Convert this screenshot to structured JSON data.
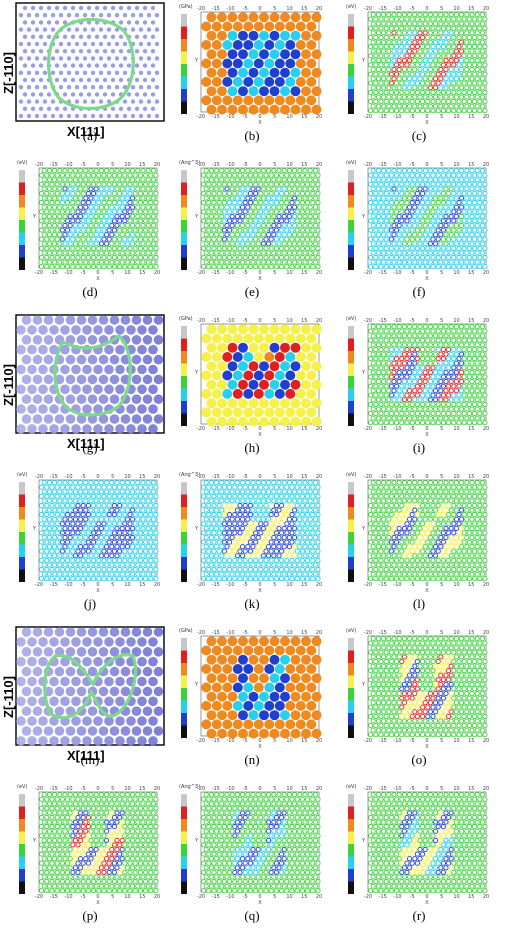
{
  "figure": {
    "panels": [
      {
        "id": "a",
        "caption": "(a)",
        "kind": "lattice",
        "xlabel": "X[111]",
        "ylabel": "Z[-110]"
      },
      {
        "id": "b",
        "caption": "(b)",
        "kind": "map",
        "unit": "(GPa)"
      },
      {
        "id": "c",
        "caption": "(c)",
        "kind": "map",
        "unit": "(eV)"
      },
      {
        "id": "d",
        "caption": "(d)",
        "kind": "map",
        "unit": "(eV)"
      },
      {
        "id": "e",
        "caption": "(e)",
        "kind": "map",
        "unit": "(Ang^3)"
      },
      {
        "id": "f",
        "caption": "(f)",
        "kind": "map",
        "unit": "(eV)"
      },
      {
        "id": "g",
        "caption": "(g)",
        "kind": "lattice",
        "xlabel": "X[111]",
        "ylabel": "Z[-110]"
      },
      {
        "id": "h",
        "caption": "(h)",
        "kind": "map",
        "unit": "(GPa)"
      },
      {
        "id": "i",
        "caption": "(i)",
        "kind": "map",
        "unit": "(eV)"
      },
      {
        "id": "j",
        "caption": "(j)",
        "kind": "map",
        "unit": "(eV)"
      },
      {
        "id": "k",
        "caption": "(k)",
        "kind": "map",
        "unit": "(Ang^3)"
      },
      {
        "id": "l",
        "caption": "(l)",
        "kind": "map",
        "unit": "(eV)"
      },
      {
        "id": "m",
        "caption": "(m)",
        "kind": "lattice",
        "xlabel": "X[111]",
        "ylabel": "Z[-110]"
      },
      {
        "id": "n",
        "caption": "(n)",
        "kind": "map",
        "unit": "(GPa)"
      },
      {
        "id": "o",
        "caption": "(o)",
        "kind": "map",
        "unit": "(eV)"
      },
      {
        "id": "p",
        "caption": "(p)",
        "kind": "map",
        "unit": "(eV)"
      },
      {
        "id": "q",
        "caption": "(q)",
        "kind": "map",
        "unit": "(Ang^3)"
      },
      {
        "id": "r",
        "caption": "(r)",
        "kind": "map",
        "unit": "(eV)"
      }
    ],
    "map_axis": {
      "x_ticks": [
        "-20",
        "-15",
        "-10",
        "-5",
        "0",
        "5",
        "10",
        "15",
        "20"
      ],
      "x_label": "X",
      "y_label": "Y"
    },
    "colors": {
      "accent_loop": "#7fd98a",
      "atom": "#9a9ee6",
      "orange": "#f08a1f",
      "red": "#e02020",
      "blue": "#1f3fd0",
      "cyan": "#26d0ee",
      "green": "#3cd23c",
      "yellow": "#f6f04a"
    }
  }
}
